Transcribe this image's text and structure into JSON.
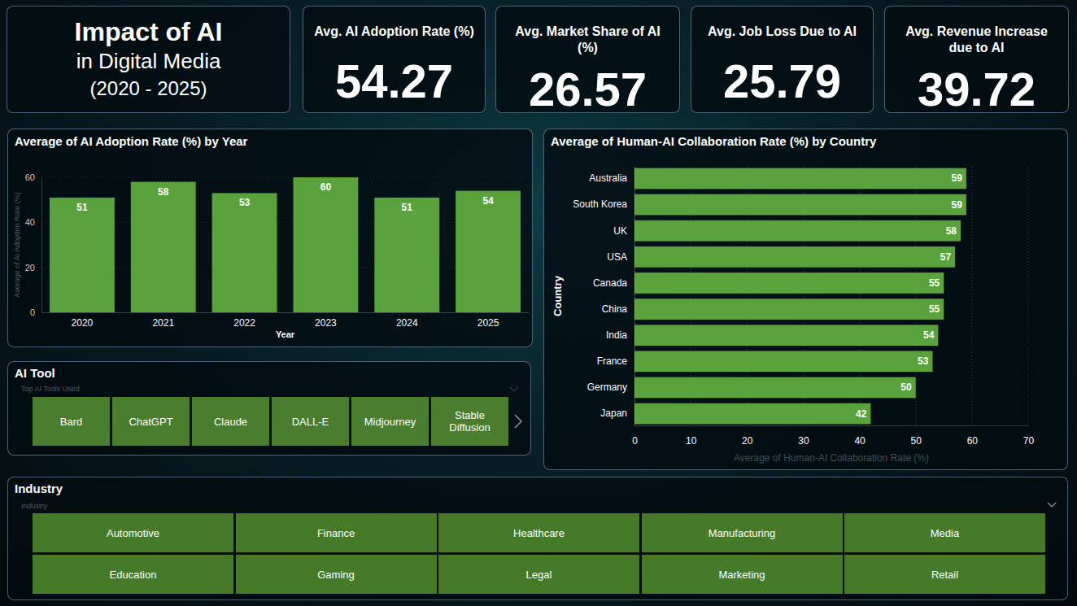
{
  "header": {
    "title": "Impact of AI",
    "subtitle": "in Digital Media",
    "period": "(2020 - 2025)"
  },
  "kpis": [
    {
      "label": "Avg. AI Adoption Rate (%)",
      "value": 54.27
    },
    {
      "label": "Avg. Market Share of AI (%)",
      "value": 26.57
    },
    {
      "label": "Avg. Job Loss Due to AI",
      "value": 25.79
    },
    {
      "label": "Avg. Revenue Increase due to AI",
      "value": 39.72
    }
  ],
  "chart_data": [
    {
      "type": "bar",
      "title": "Average of AI Adoption Rate (%) by Year",
      "x_label": "Year",
      "y_label": "Average of AI Adoption Rate (%)",
      "categories": [
        "2020",
        "2021",
        "2022",
        "2023",
        "2024",
        "2025"
      ],
      "values": [
        51,
        58,
        53,
        60,
        51,
        54
      ],
      "color": "#5aa33c",
      "ylim": [
        0,
        60
      ],
      "yticks": [
        0,
        20,
        40,
        60
      ],
      "grid": true,
      "data_labels": true
    },
    {
      "type": "bar",
      "orientation": "horizontal",
      "title": "Average of Human-AI Collaboration Rate (%) by Country",
      "x_label": "Average of Human-AI Collaboration Rate (%)",
      "y_label": "Country",
      "categories": [
        "Australia",
        "South Korea",
        "UK",
        "USA",
        "Canada",
        "China",
        "India",
        "France",
        "Germany",
        "Japan"
      ],
      "values": [
        59,
        59,
        58,
        57,
        55,
        55,
        54,
        53,
        50,
        42
      ],
      "color": "#5aa33c",
      "xlim": [
        0,
        70
      ],
      "xticks": [
        0,
        10,
        20,
        30,
        40,
        50,
        60,
        70
      ],
      "grid": true,
      "data_labels": true
    }
  ],
  "slicers": [
    {
      "title": "AI Tool",
      "subtitle": "Top AI Tools Used",
      "items": [
        "Bard",
        "ChatGPT",
        "Claude",
        "DALL-E",
        "Midjourney",
        "Stable Diffusion"
      ]
    },
    {
      "title": "Industry",
      "subtitle": "Industry",
      "items": [
        "Automotive",
        "Finance",
        "Healthcare",
        "Manufacturing",
        "Media",
        "Education",
        "Gaming",
        "Legal",
        "Marketing",
        "Retail"
      ]
    }
  ]
}
